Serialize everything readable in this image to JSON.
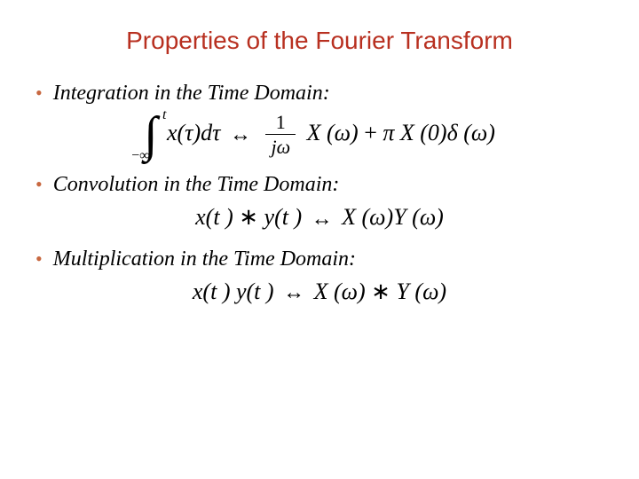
{
  "colors": {
    "title": "#b83020",
    "bullet": "#c86840",
    "text": "#000000",
    "equation": "#000000",
    "background": "#ffffff"
  },
  "title": "Properties of the Fourier Transform",
  "bullets": [
    {
      "label": "Integration in the Time Domain:"
    },
    {
      "label": "Convolution in the Time Domain:"
    },
    {
      "label": "Multiplication in the Time Domain:"
    }
  ],
  "equations": {
    "integration": {
      "upper_limit": "t",
      "lower_limit": "−∞",
      "integrand_pre": "x(",
      "integrand_var": "τ",
      "integrand_post": ")d",
      "integrand_dvar": "τ",
      "arrow": "↔",
      "frac_num": "1",
      "frac_den_j": "j",
      "frac_den_w": "ω",
      "term1_X": "X (",
      "term1_w": "ω",
      "term1_close": ")",
      "plus": "+",
      "pi": "π",
      "term2_X": " X (0)",
      "delta": "δ",
      "term2_arg_open": " (",
      "term2_w": "ω",
      "term2_close": ")"
    },
    "convolution": {
      "lhs_x": "x(t )",
      "star1": "∗",
      "lhs_y": " y(t )",
      "arrow": "↔",
      "rhs_X": " X (",
      "rhs_w1": "ω",
      "rhs_mid": ")Y (",
      "rhs_w2": "ω",
      "rhs_close": ")"
    },
    "multiplication": {
      "lhs": "x(t ) y(t )",
      "arrow": "↔",
      "rhs_X": " X (",
      "rhs_w1": "ω",
      "rhs_mid": ")",
      "star": "∗",
      "rhs_Y": "Y (",
      "rhs_w2": "ω",
      "rhs_close": ")"
    }
  },
  "typography": {
    "title_family": "Verdana",
    "title_size_pt": 21,
    "bullet_family": "Georgia",
    "bullet_size_pt": 18,
    "bullet_italic": true,
    "equation_family": "Times New Roman",
    "equation_size_pt": 20
  }
}
